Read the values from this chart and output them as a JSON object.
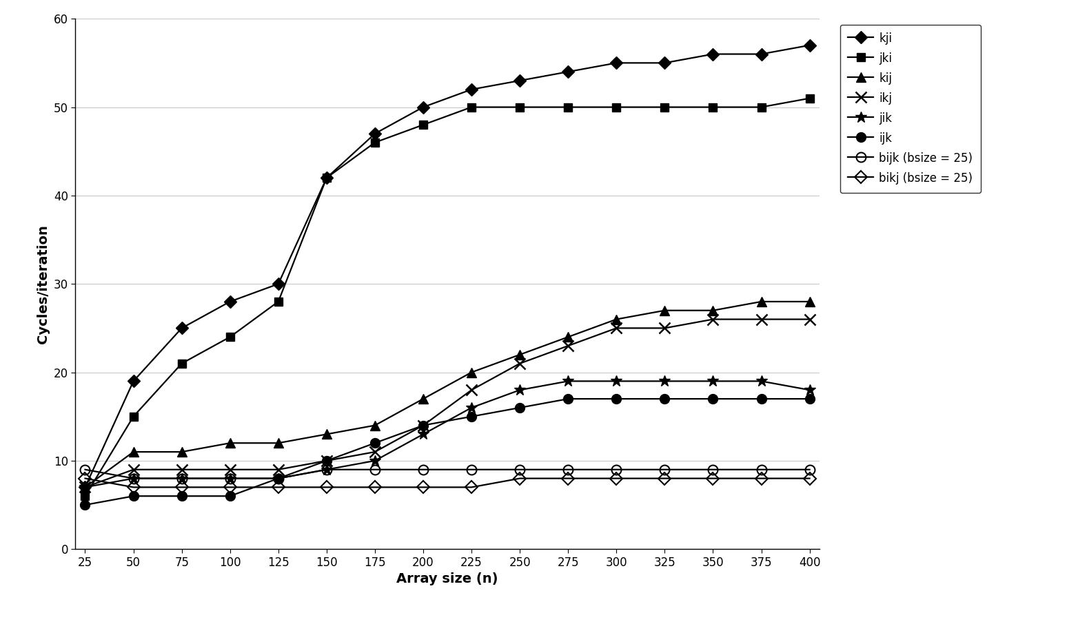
{
  "x": [
    25,
    50,
    75,
    100,
    125,
    150,
    175,
    200,
    225,
    250,
    275,
    300,
    325,
    350,
    375,
    400
  ],
  "series": {
    "kji": [
      7,
      19,
      25,
      28,
      30,
      42,
      47,
      50,
      52,
      53,
      54,
      55,
      55,
      56,
      56,
      57
    ],
    "jki": [
      6,
      15,
      21,
      24,
      28,
      42,
      46,
      48,
      50,
      50,
      50,
      50,
      50,
      50,
      50,
      51
    ],
    "kij": [
      7,
      11,
      11,
      12,
      12,
      13,
      14,
      17,
      20,
      22,
      24,
      26,
      27,
      27,
      28,
      28
    ],
    "ikj": [
      7,
      9,
      9,
      9,
      9,
      10,
      11,
      14,
      18,
      21,
      23,
      25,
      25,
      26,
      26,
      26
    ],
    "jik": [
      7,
      8,
      8,
      8,
      8,
      9,
      10,
      13,
      16,
      18,
      19,
      19,
      19,
      19,
      19,
      18
    ],
    "ijk": [
      5,
      6,
      6,
      6,
      8,
      10,
      12,
      14,
      15,
      16,
      17,
      17,
      17,
      17,
      17,
      17
    ],
    "bijk": [
      9,
      8,
      8,
      8,
      8,
      9,
      9,
      9,
      9,
      9,
      9,
      9,
      9,
      9,
      9,
      9
    ],
    "bikj": [
      8,
      7,
      7,
      7,
      7,
      7,
      7,
      7,
      7,
      8,
      8,
      8,
      8,
      8,
      8,
      8
    ]
  },
  "labels": {
    "kji": "kji",
    "jki": "jki",
    "kij": "kij",
    "ikj": "ikj",
    "jik": "jik",
    "ijk": "ijk",
    "bijk": "bijk (bsize = 25)",
    "bikj": "bikj (bsize = 25)"
  },
  "xlabel": "Array size (n)",
  "ylabel": "Cycles/iteration",
  "ylim": [
    0,
    60
  ],
  "yticks": [
    0,
    10,
    20,
    30,
    40,
    50,
    60
  ],
  "xticks": [
    25,
    50,
    75,
    100,
    125,
    150,
    175,
    200,
    225,
    250,
    275,
    300,
    325,
    350,
    375,
    400
  ],
  "background_color": "#ffffff",
  "grid_color": "#c8c8c8",
  "linewidth": 1.6,
  "axis_label_fontsize": 14,
  "tick_fontsize": 12,
  "legend_fontsize": 12
}
